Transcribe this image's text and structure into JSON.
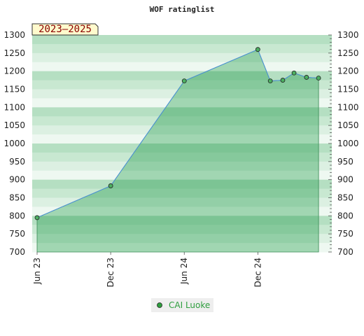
{
  "chart_data": {
    "type": "area",
    "title": "WOF ratinglist",
    "period_badge": "2023–2025",
    "xlabel": "",
    "ylabel": "",
    "ylim": [
      700,
      1300
    ],
    "y_ticks": [
      700,
      750,
      800,
      850,
      900,
      950,
      1000,
      1050,
      1100,
      1150,
      1200,
      1250,
      1300
    ],
    "x_ticks": [
      {
        "label": "Jun 23",
        "date": "2023-06-01"
      },
      {
        "label": "Dec 23",
        "date": "2023-12-01"
      },
      {
        "label": "Jun 24",
        "date": "2024-06-01"
      },
      {
        "label": "Dec 24",
        "date": "2024-12-01"
      }
    ],
    "xlim": [
      "2023-06-01",
      "2025-05-20"
    ],
    "series": [
      {
        "name": "CAI Luoke",
        "color": "#2e9e3e",
        "line_color": "#4a90d9",
        "points": [
          {
            "x": "2023-06-01",
            "y": 795
          },
          {
            "x": "2023-12-01",
            "y": 883
          },
          {
            "x": "2024-06-01",
            "y": 1173
          },
          {
            "x": "2024-12-01",
            "y": 1260
          },
          {
            "x": "2025-01-01",
            "y": 1173
          },
          {
            "x": "2025-02-01",
            "y": 1175
          },
          {
            "x": "2025-03-01",
            "y": 1195
          },
          {
            "x": "2025-04-01",
            "y": 1183
          },
          {
            "x": "2025-05-01",
            "y": 1181
          }
        ]
      }
    ],
    "legend": {
      "placement": "bottom-center"
    },
    "grid": true
  }
}
